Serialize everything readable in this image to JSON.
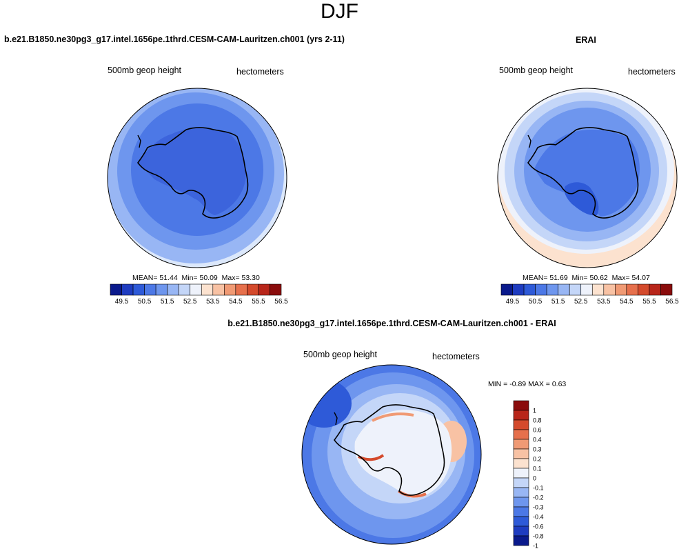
{
  "figure": {
    "season": "DJF",
    "colors": {
      "abs_scale": [
        "#0a1a8c",
        "#1e3cc0",
        "#2e5ad8",
        "#4c78e6",
        "#6e96ee",
        "#98b6f4",
        "#c4d6f8",
        "#eef2fb",
        "#fce2cf",
        "#f8c2a4",
        "#f09a74",
        "#e6704c",
        "#d44a2c",
        "#b8261a",
        "#8a0c0c"
      ],
      "diff_scale": [
        "#0a1a8c",
        "#1e3cc0",
        "#2e5ad8",
        "#4c78e6",
        "#6e96ee",
        "#98b6f4",
        "#c4d6f8",
        "#eef2fb",
        "#fce2cf",
        "#f8c2a4",
        "#f09a74",
        "#e6704c",
        "#d44a2c",
        "#b8261a",
        "#8a0c0c"
      ]
    }
  },
  "chart_data": [
    {
      "type": "heatmap",
      "panel": "model",
      "title": "b.e21.B1850.ne30pg3_g17.intel.1656pe.1thrd.CESM-CAM-Lauritzen.ch001 (yrs 2-11)",
      "left_label": "500mb geop height",
      "right_label": "hectometers",
      "stats": {
        "mean_label": "MEAN=",
        "mean": "51.44",
        "min_label": "Min=",
        "min": "50.09",
        "max_label": "Max=",
        "max": "53.30"
      },
      "colorbar_levels": [
        "49.5",
        "50",
        "50.5",
        "51",
        "51.5",
        "52",
        "52.5",
        "53",
        "53.5",
        "54",
        "54.5",
        "55",
        "55.5",
        "56",
        "56.5"
      ],
      "colorbar_labels": [
        "49.5",
        "50.5",
        "51.5",
        "52.5",
        "53.5",
        "54.5",
        "55.5",
        "56.5"
      ],
      "projection": "south-polar stereographic"
    },
    {
      "type": "heatmap",
      "panel": "obs",
      "title": "ERAI",
      "left_label": "500mb geop height",
      "right_label": "hectometers",
      "stats": {
        "mean_label": "MEAN=",
        "mean": "51.69",
        "min_label": "Min=",
        "min": "50.62",
        "max_label": "Max=",
        "max": "54.07"
      },
      "colorbar_levels": [
        "49.5",
        "50",
        "50.5",
        "51",
        "51.5",
        "52",
        "52.5",
        "53",
        "53.5",
        "54",
        "54.5",
        "55",
        "55.5",
        "56",
        "56.5"
      ],
      "colorbar_labels": [
        "49.5",
        "50.5",
        "51.5",
        "52.5",
        "53.5",
        "54.5",
        "55.5",
        "56.5"
      ],
      "projection": "south-polar stereographic"
    },
    {
      "type": "heatmap",
      "panel": "diff",
      "title": "b.e21.B1850.ne30pg3_g17.intel.1656pe.1thrd.CESM-CAM-Lauritzen.ch001 - ERAI",
      "left_label": "500mb geop height",
      "right_label": "hectometers",
      "stats": {
        "min_label": "MIN =",
        "min": "-0.89",
        "max_label": "MAX =",
        "max": "0.63"
      },
      "colorbar_levels": [
        "1",
        "0.8",
        "0.6",
        "0.4",
        "0.3",
        "0.2",
        "0.1",
        "0",
        "-0.1",
        "-0.2",
        "-0.3",
        "-0.4",
        "-0.6",
        "-0.8",
        "-1"
      ],
      "projection": "south-polar stereographic"
    }
  ]
}
